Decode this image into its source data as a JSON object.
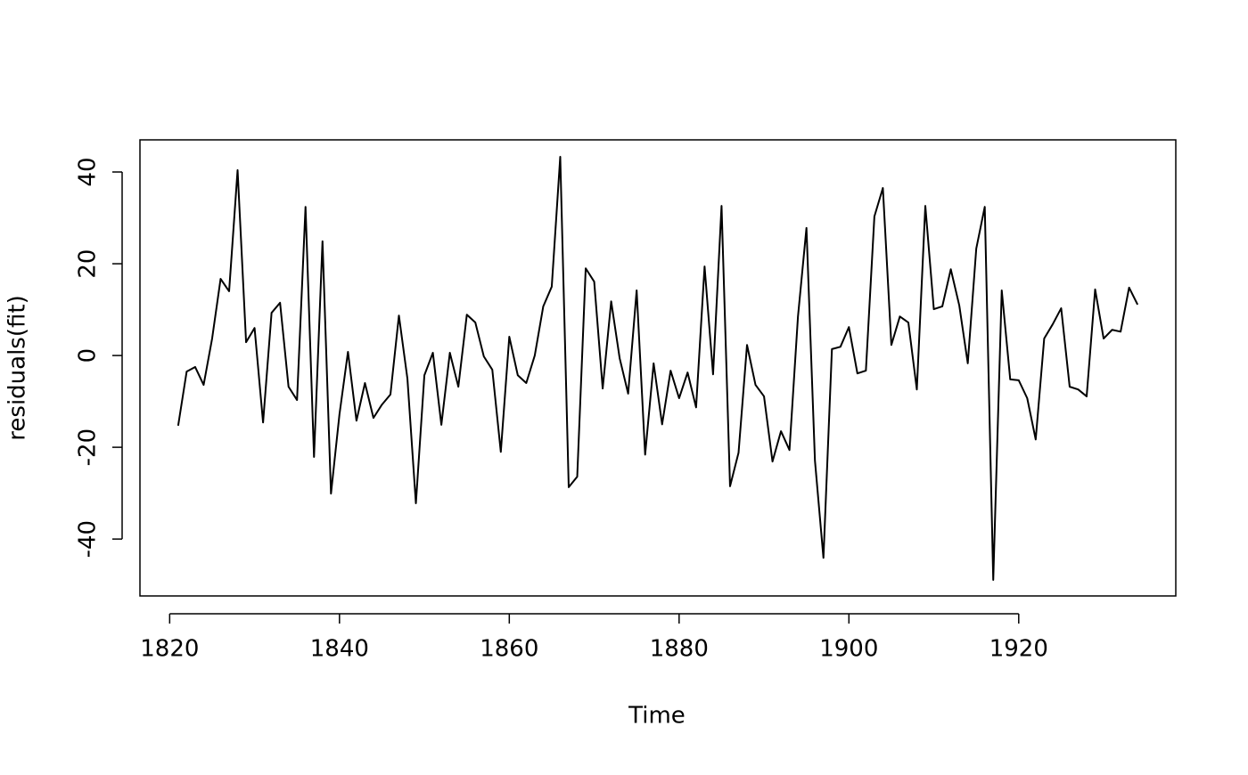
{
  "chart_data": {
    "type": "line",
    "x_label": "Time",
    "y_label": "residuals(fit)",
    "x": [
      1821,
      1822,
      1823,
      1824,
      1825,
      1826,
      1827,
      1828,
      1829,
      1830,
      1831,
      1832,
      1833,
      1834,
      1835,
      1836,
      1837,
      1838,
      1839,
      1840,
      1841,
      1842,
      1843,
      1844,
      1845,
      1846,
      1847,
      1848,
      1849,
      1850,
      1851,
      1852,
      1853,
      1854,
      1855,
      1856,
      1857,
      1858,
      1859,
      1860,
      1861,
      1862,
      1863,
      1864,
      1865,
      1866,
      1867,
      1868,
      1869,
      1870,
      1871,
      1872,
      1873,
      1874,
      1875,
      1876,
      1877,
      1878,
      1879,
      1880,
      1881,
      1882,
      1883,
      1884,
      1885,
      1886,
      1887,
      1888,
      1889,
      1890,
      1891,
      1892,
      1893,
      1894,
      1895,
      1896,
      1897,
      1898,
      1899,
      1900,
      1901,
      1902,
      1903,
      1904,
      1905,
      1906,
      1907,
      1908,
      1909,
      1910,
      1911,
      1912,
      1913,
      1914,
      1915,
      1916,
      1917,
      1918,
      1919,
      1920,
      1921,
      1922,
      1923,
      1924,
      1925,
      1926,
      1927,
      1928,
      1929,
      1930,
      1931,
      1932,
      1933,
      1934
    ],
    "values": [
      -15.3,
      -3.5,
      -2.5,
      -6.4,
      3.7,
      16.7,
      14.0,
      40.4,
      2.9,
      6.0,
      -14.6,
      9.3,
      11.5,
      -6.8,
      -9.7,
      32.4,
      -22.1,
      24.9,
      -30.1,
      -12.8,
      0.8,
      -14.2,
      -6.0,
      -13.6,
      -10.7,
      -8.5,
      8.7,
      -5.0,
      -32.2,
      -4.3,
      0.6,
      -15.1,
      0.6,
      -6.8,
      8.9,
      7.2,
      -0.2,
      -3.1,
      -21.0,
      4.1,
      -4.3,
      -6.0,
      0,
      10.7,
      15.0,
      43.3,
      -28.7,
      -26.4,
      19.0,
      16.1,
      -7.2,
      11.8,
      -0.6,
      -8.3,
      14.2,
      -21.6,
      -1.7,
      -15.0,
      -3.3,
      -9.3,
      -3.7,
      -11.3,
      19.4,
      -4.1,
      32.6,
      -28.5,
      -21.2,
      2.3,
      -6.4,
      -8.9,
      -23.1,
      -16.5,
      -20.6,
      8.5,
      27.8,
      -22.9,
      -44.1,
      1.4,
      1.9,
      6.2,
      -3.9,
      -3.3,
      30.3,
      36.5,
      2.3,
      8.5,
      7.2,
      -7.4,
      32.6,
      10.1,
      10.7,
      18.8,
      10.9,
      -1.7,
      23.3,
      32.4,
      -48.9,
      14.2,
      -5.2,
      -5.4,
      -9.3,
      -18.3,
      3.7,
      6.8,
      10.3,
      -6.8,
      -7.4,
      -8.9,
      14.4,
      3.7,
      5.6,
      5.2,
      14.8,
      11.1
    ],
    "color": "#000000",
    "xlim": [
      1816.5,
      1938.5
    ],
    "xticks": [
      1820,
      1840,
      1860,
      1880,
      1900,
      1920
    ],
    "ylim": [
      -52.4,
      47.0
    ],
    "yticks": [
      -40,
      -20,
      0,
      20,
      40
    ],
    "grid": false
  }
}
